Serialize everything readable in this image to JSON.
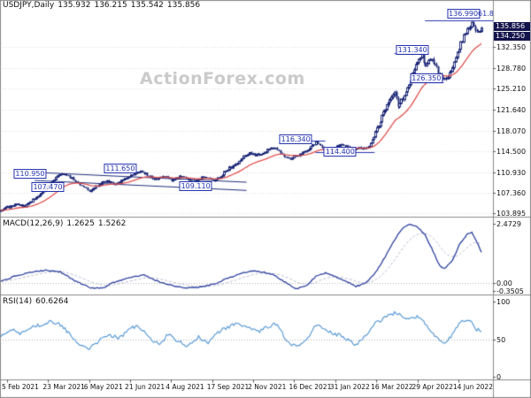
{
  "watermark": "ActionForex.com",
  "header": {
    "symbol": "USDJPY,Daily",
    "open": "135.932",
    "high": "136.215",
    "low": "135.542",
    "close": "135.856"
  },
  "colors": {
    "candle": "#1e2a78",
    "ma": "#e0504e",
    "macd": "#2b3f9e",
    "macd_signal": "#b9b9d0",
    "rsi": "#5b9bd5",
    "grid": "#d9d9d9",
    "mid_dotted": "#b5b5b5",
    "level": "#2635b0",
    "tag_bg": "#14144c",
    "separator": "#8a8a8a",
    "watermark": "#cacaca"
  },
  "chart_data": [
    {
      "type": "candlestick",
      "symbol": "USDJPY",
      "timeframe": "Daily",
      "ohlc": {
        "open": 135.932,
        "high": 136.215,
        "low": 135.542,
        "close": 135.856
      },
      "y_ticks": [
        132.35,
        128.78,
        125.21,
        121.64,
        118.07,
        114.5,
        110.93,
        107.36,
        103.895
      ],
      "y_range": [
        103.6,
        138.3
      ],
      "x_ticks": [
        "5 Feb 2021",
        "23 Mar 2021",
        "6 May 2021",
        "21 Jun 2021",
        "4 Aug 2021",
        "17 Sep 2021",
        "2 Nov 2021",
        "16 Dec 2021",
        "31 Jan 2022",
        "16 Mar 2022",
        "29 Apr 2022",
        "14 Jun 2022"
      ],
      "price_tags": [
        {
          "label": "135.856",
          "price": 135.856
        },
        {
          "label": "134.250",
          "price": 134.25
        }
      ],
      "close_path": [
        [
          0.0,
          104.5
        ],
        [
          0.014,
          104.9
        ],
        [
          0.03,
          105.4
        ],
        [
          0.048,
          105.1
        ],
        [
          0.065,
          106.1
        ],
        [
          0.08,
          107.0
        ],
        [
          0.097,
          108.8
        ],
        [
          0.112,
          110.2
        ],
        [
          0.125,
          110.8
        ],
        [
          0.14,
          110.1
        ],
        [
          0.155,
          109.2
        ],
        [
          0.17,
          108.1
        ],
        [
          0.183,
          107.7
        ],
        [
          0.2,
          108.9
        ],
        [
          0.215,
          109.4
        ],
        [
          0.23,
          108.9
        ],
        [
          0.248,
          109.6
        ],
        [
          0.264,
          110.3
        ],
        [
          0.283,
          111.3
        ],
        [
          0.3,
          110.2
        ],
        [
          0.315,
          109.6
        ],
        [
          0.33,
          110.4
        ],
        [
          0.347,
          109.4
        ],
        [
          0.362,
          110.3
        ],
        [
          0.378,
          109.8
        ],
        [
          0.392,
          109.3
        ],
        [
          0.408,
          110.0
        ],
        [
          0.42,
          109.9
        ],
        [
          0.431,
          109.4
        ],
        [
          0.447,
          110.3
        ],
        [
          0.462,
          111.6
        ],
        [
          0.478,
          112.2
        ],
        [
          0.492,
          113.6
        ],
        [
          0.506,
          114.2
        ],
        [
          0.514,
          113.9
        ],
        [
          0.53,
          114.1
        ],
        [
          0.545,
          114.9
        ],
        [
          0.558,
          115.2
        ],
        [
          0.572,
          113.6
        ],
        [
          0.585,
          113.2
        ],
        [
          0.597,
          113.7
        ],
        [
          0.615,
          114.2
        ],
        [
          0.628,
          115.2
        ],
        [
          0.64,
          116.1
        ],
        [
          0.652,
          115.0
        ],
        [
          0.666,
          114.4
        ],
        [
          0.681,
          115.3
        ],
        [
          0.695,
          115.6
        ],
        [
          0.71,
          114.9
        ],
        [
          0.722,
          115.0
        ],
        [
          0.735,
          114.9
        ],
        [
          0.748,
          115.3
        ],
        [
          0.764,
          118.6
        ],
        [
          0.776,
          120.8
        ],
        [
          0.788,
          123.4
        ],
        [
          0.797,
          124.8
        ],
        [
          0.806,
          122.2
        ],
        [
          0.815,
          123.6
        ],
        [
          0.825,
          125.3
        ],
        [
          0.835,
          127.8
        ],
        [
          0.845,
          129.8
        ],
        [
          0.853,
          130.9
        ],
        [
          0.862,
          129.3
        ],
        [
          0.872,
          130.8
        ],
        [
          0.882,
          129.0
        ],
        [
          0.89,
          127.6
        ],
        [
          0.898,
          126.8
        ],
        [
          0.906,
          127.3
        ],
        [
          0.914,
          128.6
        ],
        [
          0.922,
          130.4
        ],
        [
          0.93,
          132.6
        ],
        [
          0.94,
          134.3
        ],
        [
          0.95,
          135.9
        ],
        [
          0.957,
          136.6
        ],
        [
          0.963,
          135.0
        ],
        [
          0.969,
          134.6
        ],
        [
          0.975,
          135.86
        ]
      ],
      "levels": [
        {
          "label": "110.950",
          "f": 0.061,
          "price": 110.72
        },
        {
          "label": "107.470",
          "f": 0.097,
          "price": 108.3
        },
        {
          "label": "111.650",
          "f": 0.244,
          "price": 111.63
        },
        {
          "label": "109.110",
          "f": 0.397,
          "price": 108.6
        },
        {
          "label": "116.340",
          "f": 0.6,
          "price": 116.6
        },
        {
          "label": "114.400",
          "f": 0.69,
          "price": 114.4
        },
        {
          "label": "131.340",
          "f": 0.837,
          "price": 131.8
        },
        {
          "label": "126.350",
          "f": 0.865,
          "price": 127.0
        },
        {
          "label": "136.990",
          "f": 0.94,
          "price": 138.0
        }
      ],
      "fib": {
        "label": "61.8",
        "price": 136.99,
        "from_f": 0.862
      },
      "trendlines": [
        [
          0.07,
          110.9,
          0.5,
          109.2
        ],
        [
          0.07,
          109.5,
          0.5,
          107.8
        ]
      ],
      "segments": [
        [
          0.57,
          0.66,
          116.34
        ],
        [
          0.64,
          0.76,
          114.4
        ],
        [
          0.8,
          0.86,
          131.34
        ],
        [
          0.84,
          0.9,
          126.35
        ]
      ]
    },
    {
      "type": "line",
      "name": "MACD(12,26,9)",
      "value": "1.2625",
      "signal_value": "1.5262",
      "y_ticks": [
        {
          "label": "2.4729",
          "v": 2.4729
        },
        {
          "label": "0.00",
          "v": 0.0
        },
        {
          "label": "-0.3505",
          "v": -0.3505
        }
      ],
      "y_range": [
        -0.386,
        2.586
      ],
      "path": [
        [
          0.0,
          0.05
        ],
        [
          0.03,
          0.28
        ],
        [
          0.06,
          0.45
        ],
        [
          0.09,
          0.52
        ],
        [
          0.12,
          0.46
        ],
        [
          0.15,
          0.08
        ],
        [
          0.18,
          -0.2
        ],
        [
          0.205,
          -0.24
        ],
        [
          0.23,
          0.02
        ],
        [
          0.26,
          0.22
        ],
        [
          0.29,
          0.32
        ],
        [
          0.32,
          0.04
        ],
        [
          0.35,
          -0.14
        ],
        [
          0.38,
          -0.22
        ],
        [
          0.41,
          -0.16
        ],
        [
          0.435,
          -0.04
        ],
        [
          0.46,
          0.18
        ],
        [
          0.49,
          0.42
        ],
        [
          0.52,
          0.5
        ],
        [
          0.55,
          0.36
        ],
        [
          0.58,
          -0.02
        ],
        [
          0.6,
          -0.26
        ],
        [
          0.62,
          -0.12
        ],
        [
          0.64,
          0.28
        ],
        [
          0.66,
          0.42
        ],
        [
          0.68,
          0.24
        ],
        [
          0.7,
          0.08
        ],
        [
          0.72,
          -0.16
        ],
        [
          0.74,
          -0.02
        ],
        [
          0.76,
          0.42
        ],
        [
          0.78,
          1.1
        ],
        [
          0.8,
          1.85
        ],
        [
          0.815,
          2.28
        ],
        [
          0.83,
          2.47
        ],
        [
          0.845,
          2.33
        ],
        [
          0.86,
          2.05
        ],
        [
          0.875,
          1.4
        ],
        [
          0.89,
          0.72
        ],
        [
          0.9,
          0.58
        ],
        [
          0.915,
          0.9
        ],
        [
          0.93,
          1.58
        ],
        [
          0.945,
          2.02
        ],
        [
          0.955,
          2.12
        ],
        [
          0.965,
          1.75
        ],
        [
          0.975,
          1.26
        ]
      ]
    },
    {
      "type": "line",
      "name": "RSI(14)",
      "value": "60.6264",
      "y_ticks": [
        {
          "label": "100",
          "v": 100
        },
        {
          "label": "50",
          "v": 50
        },
        {
          "label": "0",
          "v": 0
        }
      ],
      "y_range": [
        0,
        100
      ],
      "path": [
        [
          0.0,
          55
        ],
        [
          0.02,
          63
        ],
        [
          0.04,
          57
        ],
        [
          0.06,
          66
        ],
        [
          0.08,
          69
        ],
        [
          0.1,
          73
        ],
        [
          0.12,
          69
        ],
        [
          0.14,
          57
        ],
        [
          0.16,
          44
        ],
        [
          0.18,
          37
        ],
        [
          0.2,
          49
        ],
        [
          0.22,
          56
        ],
        [
          0.24,
          51
        ],
        [
          0.26,
          63
        ],
        [
          0.28,
          68
        ],
        [
          0.3,
          51
        ],
        [
          0.32,
          44
        ],
        [
          0.34,
          56
        ],
        [
          0.36,
          47
        ],
        [
          0.38,
          41
        ],
        [
          0.4,
          53
        ],
        [
          0.42,
          46
        ],
        [
          0.44,
          59
        ],
        [
          0.46,
          66
        ],
        [
          0.48,
          71
        ],
        [
          0.5,
          67
        ],
        [
          0.52,
          59
        ],
        [
          0.54,
          66
        ],
        [
          0.56,
          71
        ],
        [
          0.58,
          47
        ],
        [
          0.6,
          39
        ],
        [
          0.62,
          49
        ],
        [
          0.64,
          69
        ],
        [
          0.66,
          61
        ],
        [
          0.68,
          57
        ],
        [
          0.7,
          51
        ],
        [
          0.72,
          41
        ],
        [
          0.74,
          56
        ],
        [
          0.76,
          71
        ],
        [
          0.78,
          79
        ],
        [
          0.8,
          86
        ],
        [
          0.815,
          81
        ],
        [
          0.83,
          77
        ],
        [
          0.845,
          81
        ],
        [
          0.86,
          71
        ],
        [
          0.875,
          59
        ],
        [
          0.89,
          47
        ],
        [
          0.9,
          44
        ],
        [
          0.915,
          56
        ],
        [
          0.93,
          71
        ],
        [
          0.945,
          76
        ],
        [
          0.955,
          71
        ],
        [
          0.965,
          63
        ],
        [
          0.975,
          60.6
        ]
      ]
    }
  ]
}
